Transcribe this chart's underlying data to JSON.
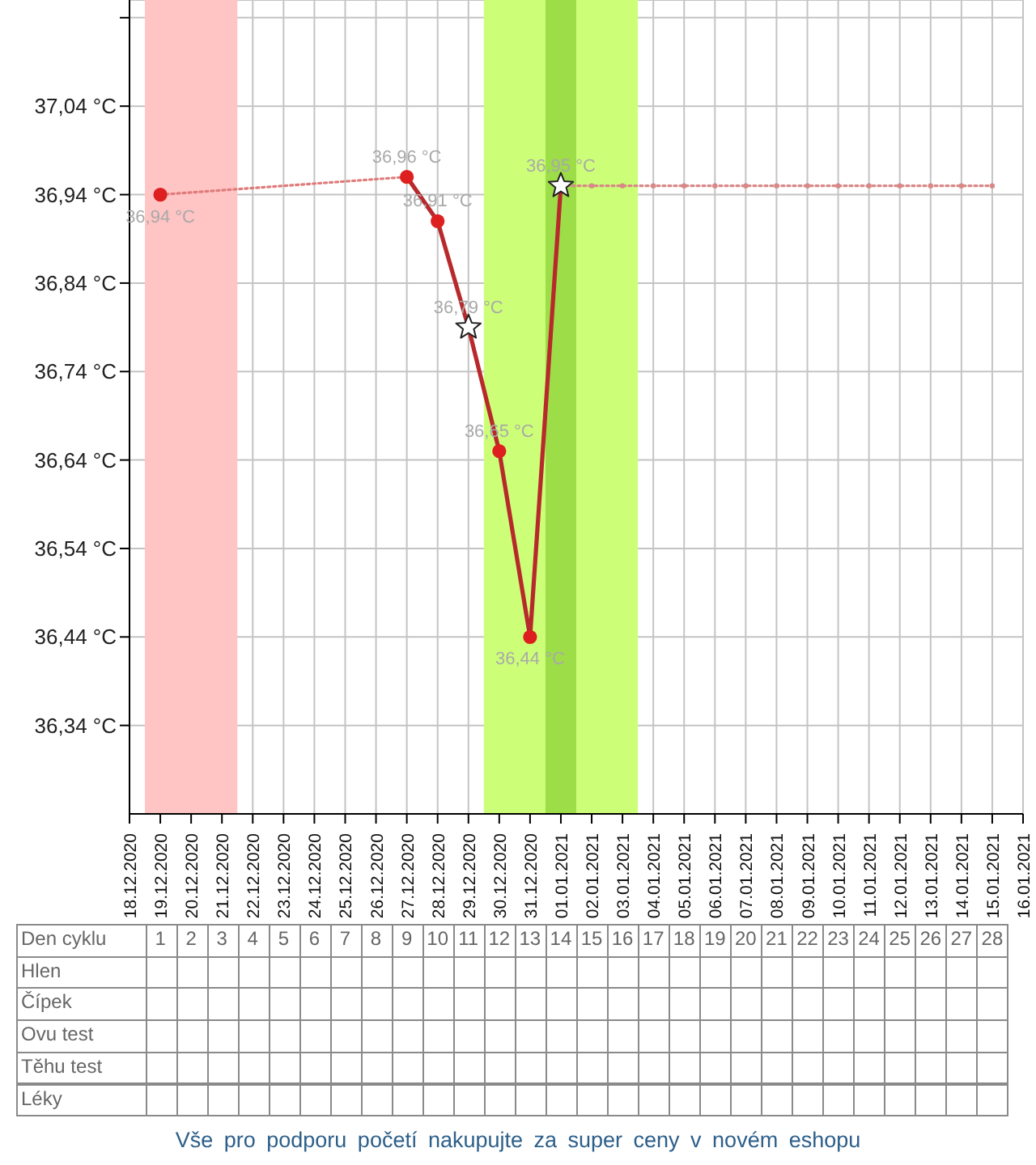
{
  "chart_data": {
    "type": "line",
    "xlim": [
      "2020-12-18",
      "2021-01-16"
    ],
    "xticks": [
      {
        "value": "2020-12-18",
        "label": "18.12.2020"
      },
      {
        "value": "2020-12-19",
        "label": "19.12.2020"
      },
      {
        "value": "2020-12-20",
        "label": "20.12.2020"
      },
      {
        "value": "2020-12-21",
        "label": "21.12.2020"
      },
      {
        "value": "2020-12-22",
        "label": "22.12.2020"
      },
      {
        "value": "2020-12-23",
        "label": "23.12.2020"
      },
      {
        "value": "2020-12-24",
        "label": "24.12.2020"
      },
      {
        "value": "2020-12-25",
        "label": "25.12.2020"
      },
      {
        "value": "2020-12-26",
        "label": "26.12.2020"
      },
      {
        "value": "2020-12-27",
        "label": "27.12.2020"
      },
      {
        "value": "2020-12-28",
        "label": "28.12.2020"
      },
      {
        "value": "2020-12-29",
        "label": "29.12.2020"
      },
      {
        "value": "2020-12-30",
        "label": "30.12.2020"
      },
      {
        "value": "2020-12-31",
        "label": "31.12.2020"
      },
      {
        "value": "2021-01-01",
        "label": "01.01.2021"
      },
      {
        "value": "2021-01-02",
        "label": "02.01.2021"
      },
      {
        "value": "2021-01-03",
        "label": "03.01.2021"
      },
      {
        "value": "2021-01-04",
        "label": "04.01.2021"
      },
      {
        "value": "2021-01-05",
        "label": "05.01.2021"
      },
      {
        "value": "2021-01-06",
        "label": "06.01.2021"
      },
      {
        "value": "2021-01-07",
        "label": "07.01.2021"
      },
      {
        "value": "2021-01-08",
        "label": "08.01.2021"
      },
      {
        "value": "2021-01-09",
        "label": "09.01.2021"
      },
      {
        "value": "2021-01-10",
        "label": "10.01.2021"
      },
      {
        "value": "2021-01-11",
        "label": "11.01.2021"
      },
      {
        "value": "2021-01-12",
        "label": "12.01.2021"
      },
      {
        "value": "2021-01-13",
        "label": "13.01.2021"
      },
      {
        "value": "2021-01-14",
        "label": "14.01.2021"
      },
      {
        "value": "2021-01-15",
        "label": "15.01.2021"
      },
      {
        "value": "2021-01-16",
        "label": "16.01.2021"
      }
    ],
    "ylim": [
      36.24,
      37.16
    ],
    "yticks": [
      {
        "value": 36.34,
        "label": "36,34 °C"
      },
      {
        "value": 36.44,
        "label": "36,44 °C"
      },
      {
        "value": 36.54,
        "label": "36,54 °C"
      },
      {
        "value": 36.64,
        "label": "36,64 °C"
      },
      {
        "value": 36.74,
        "label": "36,74 °C"
      },
      {
        "value": 36.84,
        "label": "36,84 °C"
      },
      {
        "value": 36.94,
        "label": "36,94 °C"
      },
      {
        "value": 37.04,
        "label": "37,04 °C"
      },
      {
        "value": 37.14,
        "label": null
      }
    ],
    "x2label": "Den cyklu",
    "x2lim": [
      0,
      29
    ],
    "x2ticks": [
      1,
      2,
      3,
      4,
      5,
      6,
      7,
      8,
      9,
      10,
      11,
      12,
      13,
      14,
      15,
      16,
      17,
      18,
      19,
      20,
      21,
      22,
      23,
      24,
      25,
      26,
      27,
      28
    ],
    "grid": true,
    "bands": [
      {
        "axis": "x",
        "from": "2020-12-18T12:00",
        "to": "2020-12-21T12:00",
        "color": "#ffc4c4"
      },
      {
        "axis": "x",
        "from": "2020-12-29T12:00",
        "to": "2021-01-03T12:00",
        "color": "#ccff77"
      },
      {
        "axis": "x",
        "from": "2020-12-31T12:00",
        "to": "2021-01-01T12:00",
        "color": "#9ddd48"
      }
    ],
    "series": [
      {
        "type": "line",
        "line_style": "dotted",
        "marker": "none",
        "color": "#e07b7b",
        "x": [
          "2020-12-19",
          "2020-12-27"
        ],
        "values": [
          36.94,
          36.96
        ]
      },
      {
        "type": "line",
        "line_style": "solid",
        "marker": "none",
        "color": "#b8292c",
        "x": [
          "2020-12-27",
          "2020-12-28",
          "2020-12-29",
          "2020-12-30",
          "2020-12-31",
          "2021-01-01"
        ],
        "values": [
          36.96,
          36.91,
          36.79,
          36.65,
          36.44,
          36.95
        ]
      },
      {
        "type": "line",
        "line_style": "dotted",
        "marker": "circle",
        "color": "#d98888",
        "x": [
          "2021-01-01",
          "2021-01-02",
          "2021-01-03",
          "2021-01-04",
          "2021-01-05",
          "2021-01-06",
          "2021-01-07",
          "2021-01-08",
          "2021-01-09",
          "2021-01-10",
          "2021-01-11",
          "2021-01-12",
          "2021-01-13",
          "2021-01-14",
          "2021-01-15"
        ],
        "values": [
          36.95,
          36.95,
          36.95,
          36.95,
          36.95,
          36.95,
          36.95,
          36.95,
          36.95,
          36.95,
          36.95,
          36.95,
          36.95,
          36.95,
          36.95
        ]
      },
      {
        "type": "scatter",
        "marker": "circle",
        "color": "#dd1f1f",
        "x": [
          "2020-12-19",
          "2020-12-27",
          "2020-12-28",
          "2020-12-30",
          "2020-12-31"
        ],
        "values": [
          36.94,
          36.96,
          36.91,
          36.65,
          36.44
        ],
        "value_labels": [
          "36,94 °C",
          "36,96 °C",
          "36,91 °C",
          "36,65 °C",
          "36,44 °C"
        ]
      },
      {
        "type": "scatter",
        "marker": "star",
        "color": "#ffffff",
        "x": [
          "2020-12-29",
          "2021-01-01"
        ],
        "values": [
          36.79,
          36.95
        ],
        "value_labels": [
          "36,79 °C",
          "36,95 °C"
        ]
      }
    ],
    "annotations": [
      "Hlen",
      "Čípek",
      "Ovu test",
      "Těhu test",
      "Léky",
      "Vše pro podporu početí nakupujte za super ceny v novém eshopu"
    ]
  }
}
